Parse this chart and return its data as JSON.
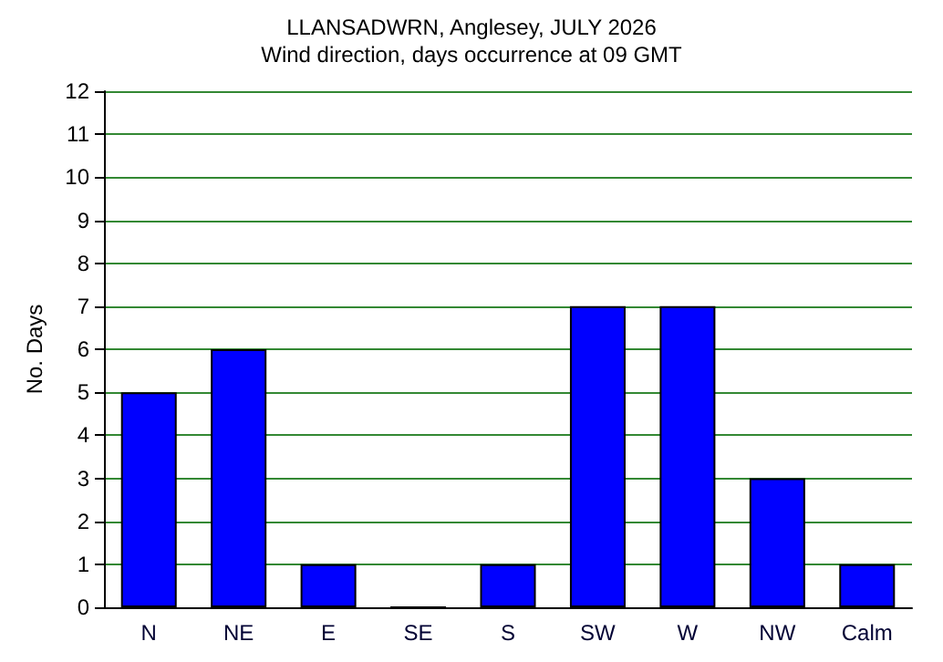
{
  "chart_data": {
    "type": "bar",
    "title": "LLANSADWRN, Anglesey, JULY 2026",
    "subtitle": "Wind direction, days occurrence at 09 GMT",
    "ylabel": "No. Days",
    "categories": [
      "N",
      "NE",
      "E",
      "SE",
      "S",
      "SW",
      "W",
      "NW",
      "Calm"
    ],
    "values": [
      5,
      6,
      1,
      0,
      1,
      7,
      7,
      3,
      1
    ],
    "color": "#0000ff",
    "ylim": [
      0,
      12
    ],
    "yticks": [
      0,
      1,
      2,
      3,
      4,
      5,
      6,
      7,
      8,
      9,
      10,
      11,
      12
    ],
    "grid": "y"
  }
}
